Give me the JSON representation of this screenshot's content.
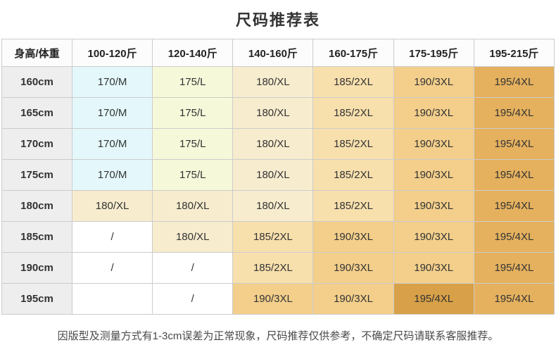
{
  "chart_data": {
    "type": "table",
    "title": "尺码推荐表",
    "columns": [
      "身高/体重",
      "100-120斤",
      "120-140斤",
      "140-160斤",
      "160-175斤",
      "175-195斤",
      "195-215斤"
    ],
    "rows": [
      {
        "height": "160cm",
        "cells": [
          {
            "text": "170/M",
            "color": "cyan"
          },
          {
            "text": "175/L",
            "color": "yellow_green"
          },
          {
            "text": "180/XL",
            "color": "cream"
          },
          {
            "text": "185/2XL",
            "color": "light_tan"
          },
          {
            "text": "190/3XL",
            "color": "tan"
          },
          {
            "text": "195/4XL",
            "color": "orange"
          }
        ]
      },
      {
        "height": "165cm",
        "cells": [
          {
            "text": "170/M",
            "color": "cyan"
          },
          {
            "text": "175/L",
            "color": "yellow_green"
          },
          {
            "text": "180/XL",
            "color": "cream"
          },
          {
            "text": "185/2XL",
            "color": "light_tan"
          },
          {
            "text": "190/3XL",
            "color": "tan"
          },
          {
            "text": "195/4XL",
            "color": "orange"
          }
        ]
      },
      {
        "height": "170cm",
        "cells": [
          {
            "text": "170/M",
            "color": "cyan"
          },
          {
            "text": "175/L",
            "color": "yellow_green"
          },
          {
            "text": "180/XL",
            "color": "cream"
          },
          {
            "text": "185/2XL",
            "color": "light_tan"
          },
          {
            "text": "190/3XL",
            "color": "tan"
          },
          {
            "text": "195/4XL",
            "color": "orange"
          }
        ]
      },
      {
        "height": "175cm",
        "cells": [
          {
            "text": "170/M",
            "color": "cyan"
          },
          {
            "text": "175/L",
            "color": "yellow_green"
          },
          {
            "text": "180/XL",
            "color": "cream"
          },
          {
            "text": "185/2XL",
            "color": "light_tan"
          },
          {
            "text": "190/3XL",
            "color": "tan"
          },
          {
            "text": "195/4XL",
            "color": "orange"
          }
        ]
      },
      {
        "height": "180cm",
        "cells": [
          {
            "text": "180/XL",
            "color": "cream"
          },
          {
            "text": "180/XL",
            "color": "cream"
          },
          {
            "text": "180/XL",
            "color": "cream"
          },
          {
            "text": "185/2XL",
            "color": "light_tan"
          },
          {
            "text": "190/3XL",
            "color": "tan"
          },
          {
            "text": "195/4XL",
            "color": "orange"
          }
        ]
      },
      {
        "height": "185cm",
        "cells": [
          {
            "text": "/",
            "color": "white"
          },
          {
            "text": "180/XL",
            "color": "cream"
          },
          {
            "text": "185/2XL",
            "color": "light_tan"
          },
          {
            "text": "190/3XL",
            "color": "tan"
          },
          {
            "text": "190/3XL",
            "color": "tan"
          },
          {
            "text": "195/4XL",
            "color": "orange"
          }
        ]
      },
      {
        "height": "190cm",
        "cells": [
          {
            "text": "/",
            "color": "white"
          },
          {
            "text": "/",
            "color": "white"
          },
          {
            "text": "185/2XL",
            "color": "light_tan"
          },
          {
            "text": "190/3XL",
            "color": "tan"
          },
          {
            "text": "190/3XL",
            "color": "tan"
          },
          {
            "text": "195/4XL",
            "color": "orange"
          }
        ]
      },
      {
        "height": "195cm",
        "cells": [
          {
            "text": "",
            "color": "white"
          },
          {
            "text": "/",
            "color": "white"
          },
          {
            "text": "190/3XL",
            "color": "tan"
          },
          {
            "text": "190/3XL",
            "color": "tan"
          },
          {
            "text": "195/4XL",
            "color": "orange_dark"
          },
          {
            "text": "195/4XL",
            "color": "orange"
          }
        ]
      }
    ],
    "note": "因版型及测量方式有1-3cm误差为正常现象，尺码推荐仅供参考，不确定尺码请联系客服推荐。"
  },
  "colors": {
    "white": "#ffffff",
    "cyan": "#e4f8fb",
    "yellow_green": "#f6f8da",
    "cream": "#f7ecce",
    "light_tan": "#f8e0ad",
    "tan": "#f3cf8b",
    "orange": "#e5b15e",
    "orange_dark": "#d8a048",
    "header_bg": "#fcfcfc",
    "row_header_bg": "#eeeeee",
    "border": "#cccccc",
    "title_text": "#333333",
    "note_text": "#4a4a4a"
  }
}
